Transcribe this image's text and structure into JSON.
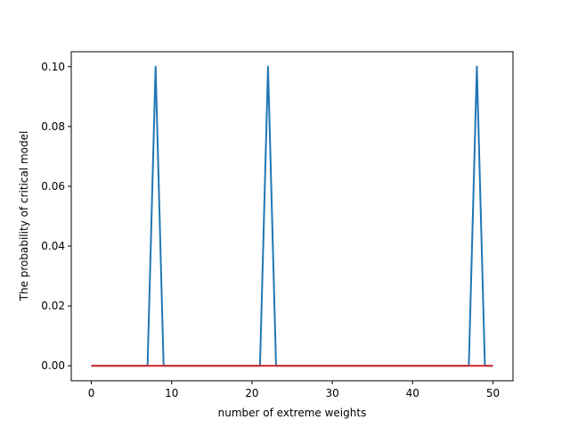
{
  "chart_data": {
    "type": "line",
    "xlabel": "number of extreme weights",
    "ylabel": "The probability of critical model",
    "xlim": [
      -2.5,
      52.5
    ],
    "ylim": [
      -0.005,
      0.105
    ],
    "xticks": [
      0,
      10,
      20,
      30,
      40,
      50
    ],
    "xtick_labels": [
      "0",
      "10",
      "20",
      "30",
      "40",
      "50"
    ],
    "yticks": [
      0.0,
      0.02,
      0.04,
      0.06,
      0.08,
      0.1
    ],
    "ytick_labels": [
      "0.00",
      "0.02",
      "0.04",
      "0.06",
      "0.08",
      "0.10"
    ],
    "grid": false,
    "series": [
      {
        "color": "#1f77b4",
        "x": [
          0,
          1,
          2,
          3,
          4,
          5,
          6,
          7,
          8,
          9,
          10,
          11,
          12,
          13,
          14,
          15,
          16,
          17,
          18,
          19,
          20,
          21,
          22,
          23,
          24,
          25,
          26,
          27,
          28,
          29,
          30,
          31,
          32,
          33,
          34,
          35,
          36,
          37,
          38,
          39,
          40,
          41,
          42,
          43,
          44,
          45,
          46,
          47,
          48,
          49,
          50
        ],
        "y": [
          0,
          0,
          0,
          0,
          0,
          0,
          0,
          0,
          0.1,
          0,
          0,
          0,
          0,
          0,
          0,
          0,
          0,
          0,
          0,
          0,
          0,
          0,
          0.1,
          0,
          0,
          0,
          0,
          0,
          0,
          0,
          0,
          0,
          0,
          0,
          0,
          0,
          0,
          0,
          0,
          0,
          0,
          0,
          0,
          0,
          0,
          0,
          0,
          0,
          0.1,
          0,
          0
        ]
      },
      {
        "color": "#d62728",
        "x": [
          0,
          1,
          2,
          3,
          4,
          5,
          6,
          7,
          8,
          9,
          10,
          11,
          12,
          13,
          14,
          15,
          16,
          17,
          18,
          19,
          20,
          21,
          22,
          23,
          24,
          25,
          26,
          27,
          28,
          29,
          30,
          31,
          32,
          33,
          34,
          35,
          36,
          37,
          38,
          39,
          40,
          41,
          42,
          43,
          44,
          45,
          46,
          47,
          48,
          49,
          50
        ],
        "y": [
          0,
          0,
          0,
          0,
          0,
          0,
          0,
          0,
          0,
          0,
          0,
          0,
          0,
          0,
          0,
          0,
          0,
          0,
          0,
          0,
          0,
          0,
          0,
          0,
          0,
          0,
          0,
          0,
          0,
          0,
          0,
          0,
          0,
          0,
          0,
          0,
          0,
          0,
          0,
          0,
          0,
          0,
          0,
          0,
          0,
          0,
          0,
          0,
          0,
          0,
          0
        ]
      }
    ]
  }
}
